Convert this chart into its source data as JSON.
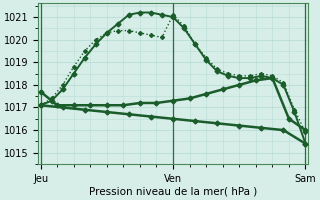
{
  "title": "Pression niveau de la mer( hPa )",
  "bg_color": "#d6ede8",
  "grid_color": "#b8ddd5",
  "line_color": "#1a5c2a",
  "ylim": [
    1014.6,
    1021.6
  ],
  "yticks": [
    1015,
    1016,
    1017,
    1018,
    1019,
    1020,
    1021
  ],
  "xtick_labels": [
    "Jeu",
    "Ven",
    "Sam"
  ],
  "xtick_positions": [
    0,
    24,
    48
  ],
  "lines": [
    {
      "x": [
        0,
        2,
        4,
        6,
        8,
        10,
        12,
        14,
        16,
        18,
        20,
        22,
        24,
        26,
        28,
        30,
        32,
        34,
        36,
        38,
        40,
        42,
        44,
        46,
        48
      ],
      "y": [
        1017.1,
        1017.3,
        1017.8,
        1018.5,
        1019.2,
        1019.8,
        1020.3,
        1020.7,
        1021.1,
        1021.2,
        1021.2,
        1021.1,
        1021.0,
        1020.5,
        1019.8,
        1019.1,
        1018.6,
        1018.4,
        1018.3,
        1018.3,
        1018.4,
        1018.3,
        1018.0,
        1016.8,
        1015.4
      ],
      "lw": 1.4,
      "marker": "D",
      "ms": 2.5,
      "linestyle": "-"
    },
    {
      "x": [
        0,
        2,
        4,
        6,
        8,
        10,
        12,
        14,
        16,
        18,
        20,
        22,
        24,
        26,
        28,
        30,
        32,
        34,
        36,
        38,
        40,
        42,
        44,
        46,
        48
      ],
      "y": [
        1017.1,
        1017.4,
        1018.0,
        1018.8,
        1019.5,
        1020.0,
        1020.3,
        1020.4,
        1020.4,
        1020.3,
        1020.2,
        1020.1,
        1021.1,
        1020.6,
        1019.8,
        1019.2,
        1018.7,
        1018.5,
        1018.4,
        1018.4,
        1018.5,
        1018.4,
        1018.1,
        1016.9,
        1015.9
      ],
      "lw": 1.0,
      "marker": "D",
      "ms": 2.0,
      "linestyle": "dotted"
    },
    {
      "x": [
        0,
        3,
        6,
        9,
        12,
        15,
        18,
        21,
        24,
        27,
        30,
        33,
        36,
        39,
        42,
        45,
        48
      ],
      "y": [
        1017.7,
        1017.1,
        1017.1,
        1017.1,
        1017.1,
        1017.1,
        1017.2,
        1017.2,
        1017.3,
        1017.4,
        1017.6,
        1017.8,
        1018.0,
        1018.2,
        1018.3,
        1016.5,
        1016.0
      ],
      "lw": 1.8,
      "marker": "D",
      "ms": 2.5,
      "linestyle": "-"
    },
    {
      "x": [
        0,
        4,
        8,
        12,
        16,
        20,
        24,
        28,
        32,
        36,
        40,
        44,
        48
      ],
      "y": [
        1017.1,
        1017.0,
        1016.9,
        1016.8,
        1016.7,
        1016.6,
        1016.5,
        1016.4,
        1016.3,
        1016.2,
        1016.1,
        1016.0,
        1015.4
      ],
      "lw": 1.8,
      "marker": "D",
      "ms": 2.5,
      "linestyle": "-"
    }
  ]
}
